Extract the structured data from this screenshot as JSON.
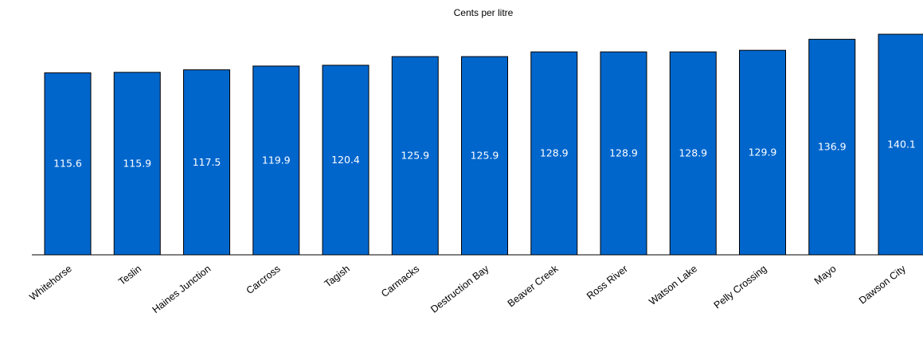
{
  "chart_data": {
    "type": "bar",
    "title": "Cents per litre",
    "xlabel": "",
    "ylabel": "",
    "categories": [
      "Whitehorse",
      "Teslin",
      "Haines Junction",
      "Carcross",
      "Tagish",
      "Carmacks",
      "Destruction Bay",
      "Beaver Creek",
      "Ross River",
      "Watson Lake",
      "Pelly Crossing",
      "Mayo",
      "Dawson City"
    ],
    "values": [
      115.6,
      115.9,
      117.5,
      119.9,
      120.4,
      125.9,
      125.9,
      128.9,
      128.9,
      128.9,
      129.9,
      136.9,
      140.1
    ],
    "value_labels": [
      "115.6",
      "115.9",
      "117.5",
      "119.9",
      "120.4",
      "125.9",
      "125.9",
      "128.9",
      "128.9",
      "128.9",
      "129.9",
      "136.9",
      "140.1"
    ],
    "ylim": [
      0,
      140.1
    ],
    "grid": false,
    "legend": "none",
    "bar_color": "#0066cc",
    "y_axis_shown": false
  }
}
